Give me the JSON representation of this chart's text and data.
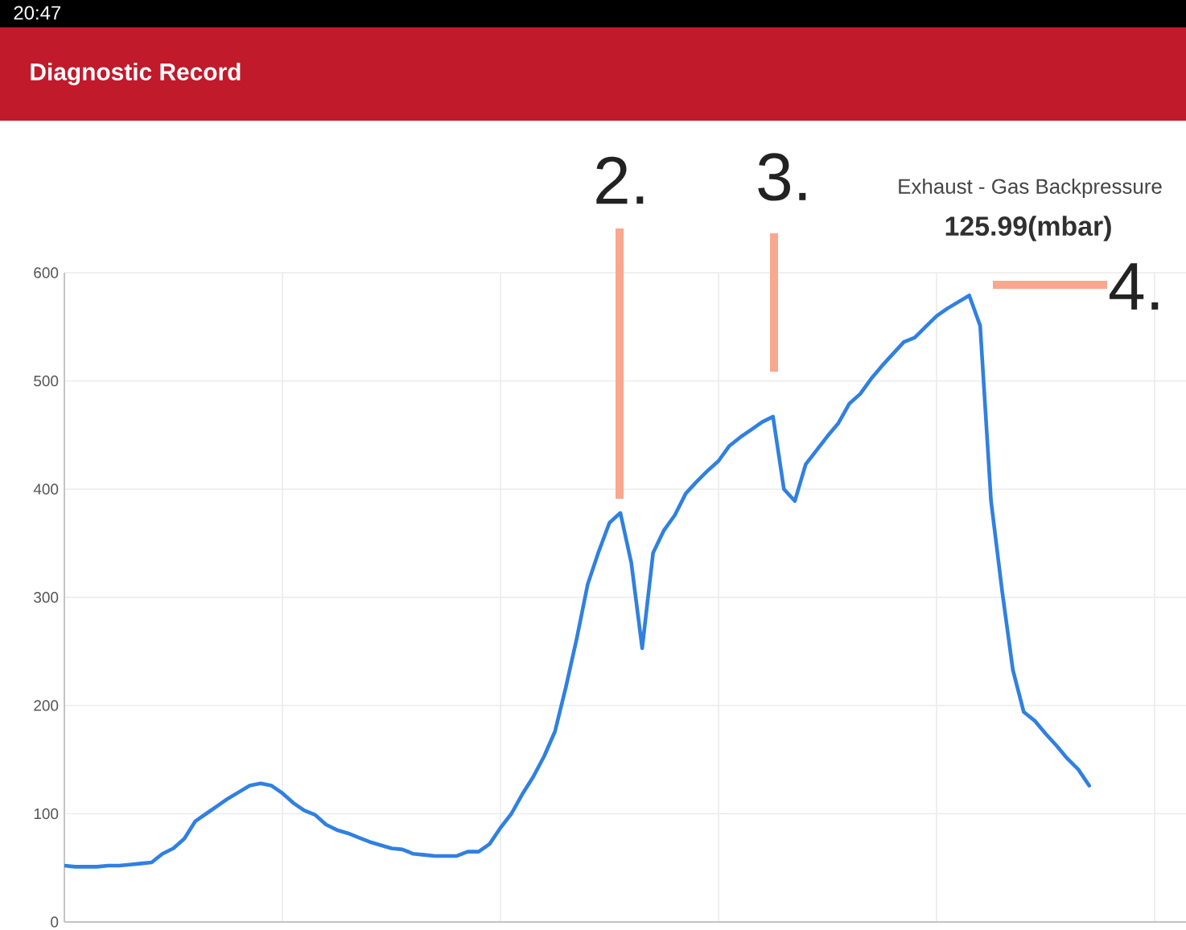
{
  "chart_data": {
    "type": "line",
    "title": "Diagnostic Record",
    "subtitle": "Exhaust - Gas Backpressure",
    "annotations": [
      "20:47",
      "2.",
      "3.",
      "4.",
      "125.99(mbar)"
    ],
    "categories": [
      null,
      null,
      null,
      null,
      null,
      null,
      null,
      null,
      null,
      null,
      null,
      null,
      null,
      null,
      null,
      null,
      null,
      null,
      null,
      null,
      null,
      null,
      null,
      null,
      null,
      null,
      null,
      null,
      null,
      null,
      null,
      null,
      null,
      null,
      null,
      null,
      null,
      null,
      null,
      null,
      null,
      null,
      null,
      null,
      null,
      null,
      null,
      null,
      null,
      null,
      null,
      null,
      null,
      null,
      null,
      null,
      null,
      null,
      null,
      null,
      null,
      null,
      null,
      null,
      null,
      null,
      null,
      null,
      null,
      null,
      null,
      null,
      null,
      null,
      null,
      null,
      null,
      null,
      null,
      null,
      null,
      null,
      null,
      null,
      null,
      null,
      null,
      null,
      null,
      null,
      null,
      null,
      null,
      null,
      null
    ],
    "values": [
      52,
      51,
      51,
      51,
      52,
      52,
      53,
      54,
      55,
      63,
      68,
      77,
      93,
      100,
      107,
      114,
      120,
      126,
      128,
      126,
      119,
      110,
      103,
      99,
      90,
      85,
      82,
      78,
      74,
      71,
      68,
      67,
      63,
      62,
      61,
      61,
      61,
      65,
      65,
      72,
      87,
      100,
      118,
      134,
      153,
      176,
      217,
      262,
      312,
      342,
      369,
      378,
      332,
      253,
      341,
      362,
      376,
      396,
      407,
      417,
      426,
      440,
      448,
      455,
      462,
      467,
      400,
      389,
      423,
      436,
      449,
      461,
      479,
      488,
      502,
      514,
      525,
      536,
      540,
      550,
      560,
      567,
      573,
      579,
      551,
      389,
      307,
      233,
      194,
      186,
      174,
      163,
      151,
      141,
      126
    ],
    "color": "#3080e0",
    "ylim": [
      0,
      600
    ],
    "yticks": [
      0,
      100,
      200,
      300,
      400,
      500,
      600
    ],
    "grid": true
  }
}
